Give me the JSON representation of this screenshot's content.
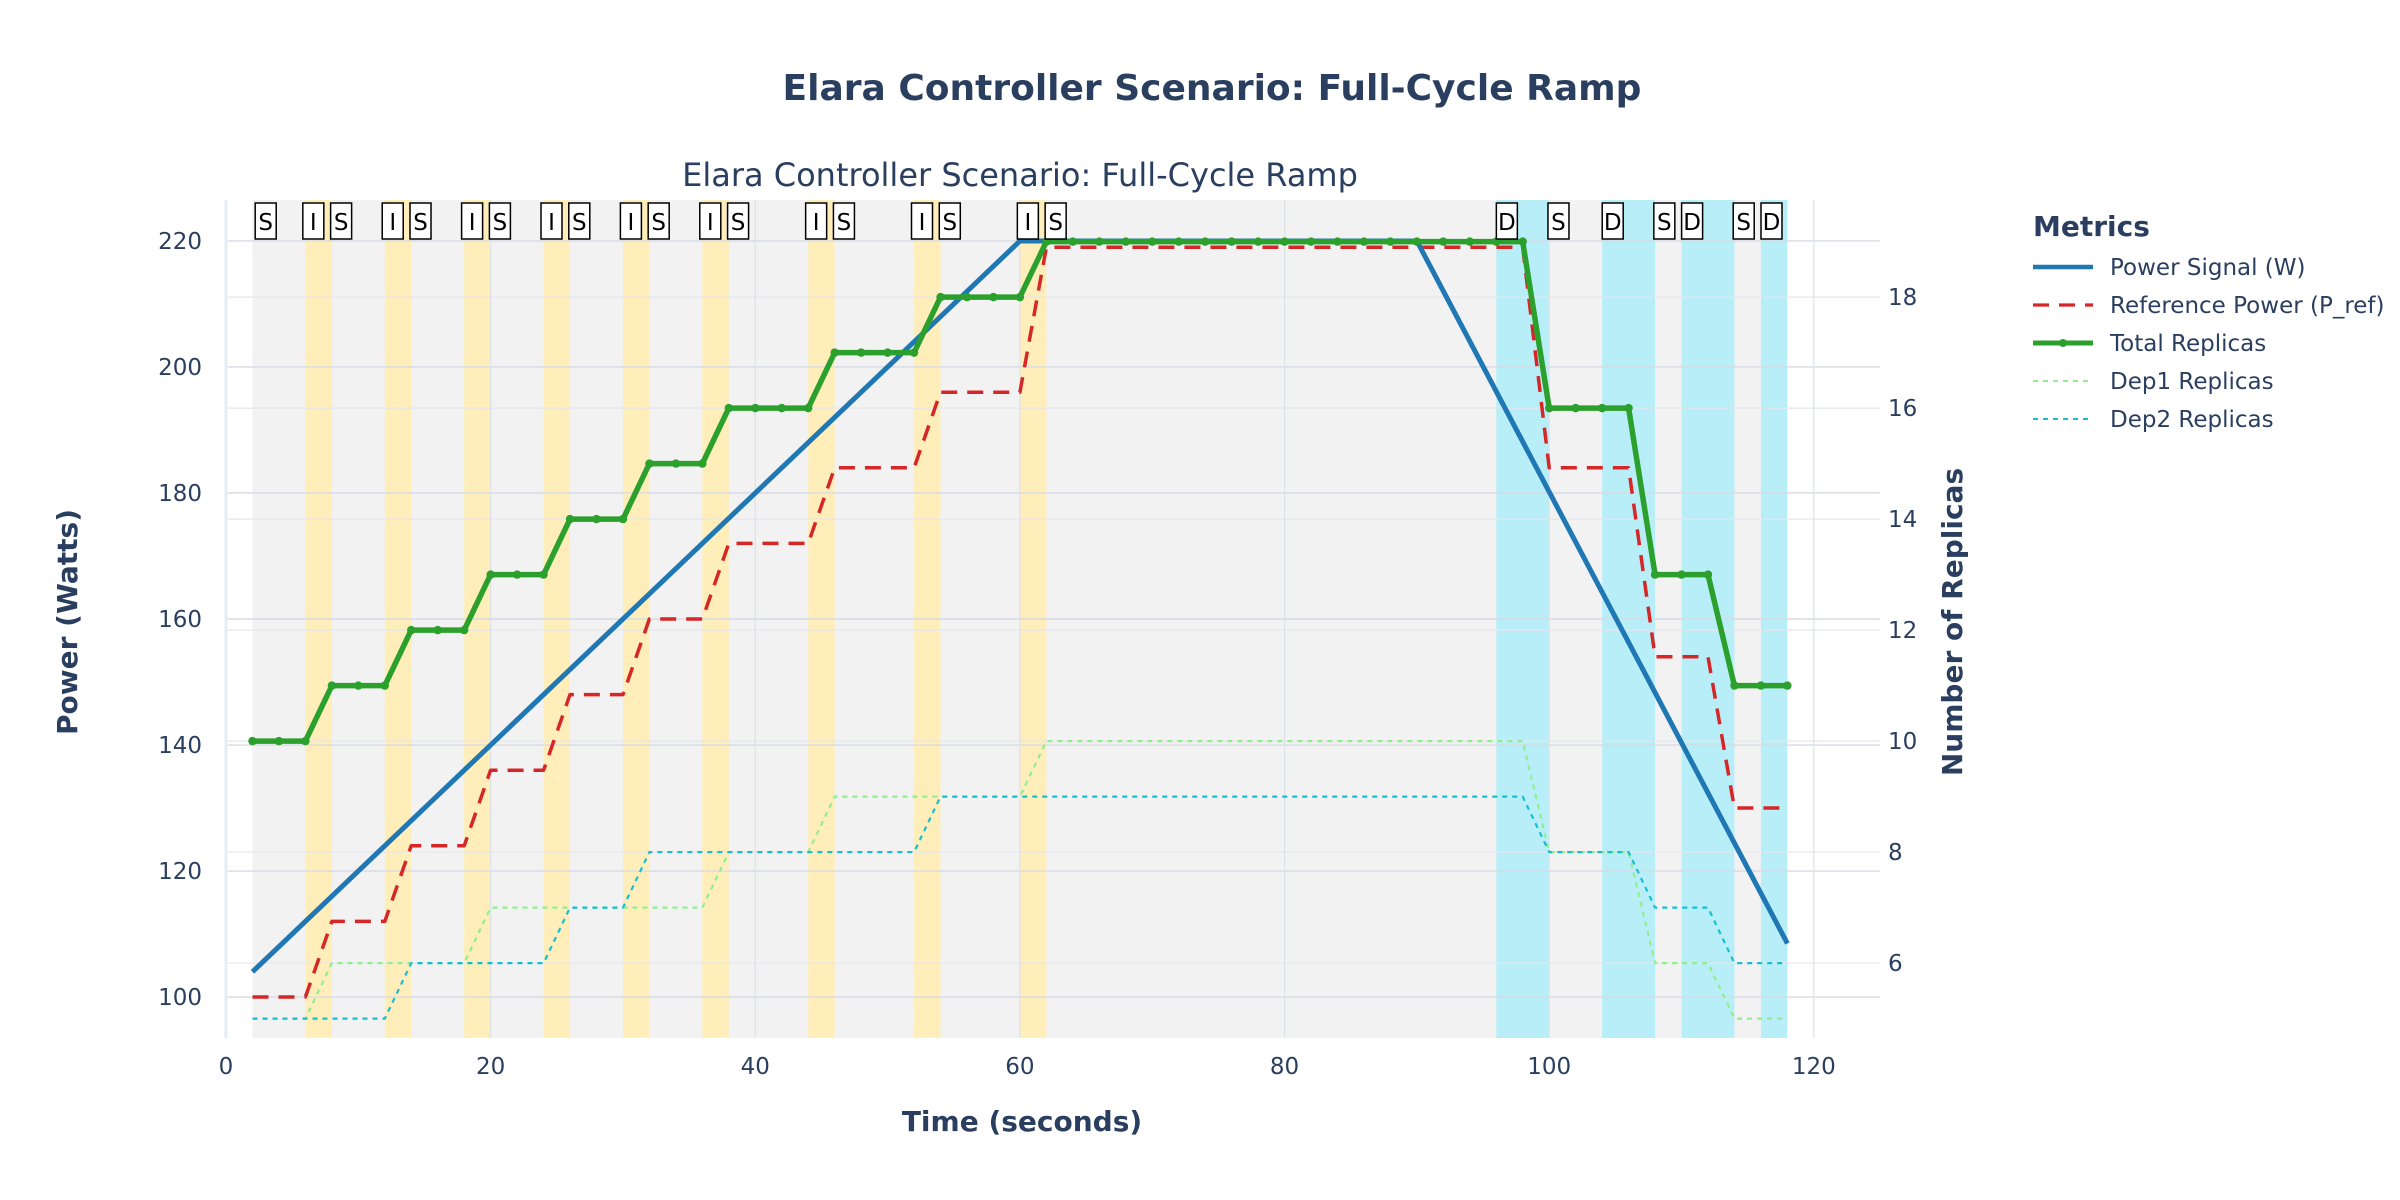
{
  "chart_data": {
    "type": "line",
    "title": "Elara Controller Scenario: Full-Cycle Ramp",
    "subtitle": "Elara Controller Scenario: Full-Cycle Ramp",
    "xlabel": "Time (seconds)",
    "ylabel": "Power (Watts)",
    "y2label": "Number of Replicas",
    "xlim": [
      0,
      125
    ],
    "ylim": [
      93.5,
      226.5
    ],
    "y2lim": [
      4.65,
      19.75
    ],
    "x_ticks": [
      0,
      20,
      40,
      60,
      80,
      100,
      120
    ],
    "y_ticks": [
      100,
      120,
      140,
      160,
      180,
      200,
      220
    ],
    "y2_ticks": [
      6,
      8,
      10,
      12,
      14,
      16,
      18
    ],
    "grid": true,
    "legend_title": "Metrics",
    "legend_position": "top-right",
    "background_shading": {
      "range": [
        2,
        118
      ],
      "color": "#f2f2f2"
    },
    "bands": [
      {
        "start": 6,
        "end": 8,
        "kind": "I",
        "color": "#ffeeba"
      },
      {
        "start": 12,
        "end": 14,
        "kind": "I",
        "color": "#ffeeba"
      },
      {
        "start": 18,
        "end": 20,
        "kind": "I",
        "color": "#ffeeba"
      },
      {
        "start": 24,
        "end": 26,
        "kind": "I",
        "color": "#ffeeba"
      },
      {
        "start": 30,
        "end": 32,
        "kind": "I",
        "color": "#ffeeba"
      },
      {
        "start": 36,
        "end": 38,
        "kind": "I",
        "color": "#ffeeba"
      },
      {
        "start": 44,
        "end": 46,
        "kind": "I",
        "color": "#ffeeba"
      },
      {
        "start": 52,
        "end": 54,
        "kind": "I",
        "color": "#ffeeba"
      },
      {
        "start": 60,
        "end": 62,
        "kind": "I",
        "color": "#ffeeba"
      },
      {
        "start": 96,
        "end": 100,
        "kind": "D",
        "color": "#b8eef8"
      },
      {
        "start": 104,
        "end": 108,
        "kind": "D",
        "color": "#b8eef8"
      },
      {
        "start": 110,
        "end": 114,
        "kind": "D",
        "color": "#b8eef8"
      },
      {
        "start": 116,
        "end": 118,
        "kind": "D",
        "color": "#b8eef8"
      }
    ],
    "markers": [
      {
        "x": 3,
        "label": "S"
      },
      {
        "x": 6.6,
        "label": "I"
      },
      {
        "x": 8.7,
        "label": "S"
      },
      {
        "x": 12.6,
        "label": "I"
      },
      {
        "x": 14.7,
        "label": "S"
      },
      {
        "x": 18.6,
        "label": "I"
      },
      {
        "x": 20.7,
        "label": "S"
      },
      {
        "x": 24.6,
        "label": "I"
      },
      {
        "x": 26.7,
        "label": "S"
      },
      {
        "x": 30.6,
        "label": "I"
      },
      {
        "x": 32.7,
        "label": "S"
      },
      {
        "x": 36.6,
        "label": "I"
      },
      {
        "x": 38.7,
        "label": "S"
      },
      {
        "x": 44.6,
        "label": "I"
      },
      {
        "x": 46.7,
        "label": "S"
      },
      {
        "x": 52.6,
        "label": "I"
      },
      {
        "x": 54.7,
        "label": "S"
      },
      {
        "x": 60.6,
        "label": "I"
      },
      {
        "x": 62.7,
        "label": "S"
      },
      {
        "x": 96.8,
        "label": "D"
      },
      {
        "x": 100.7,
        "label": "S"
      },
      {
        "x": 104.8,
        "label": "D"
      },
      {
        "x": 108.7,
        "label": "S"
      },
      {
        "x": 110.8,
        "label": "D"
      },
      {
        "x": 114.7,
        "label": "S"
      },
      {
        "x": 116.8,
        "label": "D"
      }
    ],
    "series": [
      {
        "name": "Power Signal (W)",
        "axis": "y",
        "color": "#1f77b4",
        "style": "solid",
        "markers": false,
        "x": [
          2,
          60,
          90,
          118
        ],
        "y": [
          104,
          220,
          220,
          108.5
        ]
      },
      {
        "name": "Reference Power (P_ref)",
        "axis": "y",
        "color": "#d62728",
        "style": "dash",
        "markers": false,
        "x": [
          2,
          6,
          8,
          12,
          14,
          18,
          20,
          24,
          26,
          30,
          32,
          36,
          38,
          44,
          46,
          52,
          54,
          60,
          62,
          90,
          98,
          100,
          106,
          108,
          112,
          114,
          118
        ],
        "y": [
          100,
          100,
          112,
          112,
          124,
          124,
          136,
          136,
          148,
          148,
          160,
          160,
          172,
          172,
          184,
          184,
          196,
          196,
          219,
          219,
          219,
          184,
          184,
          154,
          154,
          130,
          130
        ]
      },
      {
        "name": "Total Replicas",
        "axis": "y2",
        "color": "#2ca02c",
        "style": "solid",
        "markers": true,
        "x": [
          2,
          4,
          6,
          8,
          10,
          12,
          14,
          16,
          18,
          20,
          22,
          24,
          26,
          28,
          30,
          32,
          34,
          36,
          38,
          40,
          42,
          44,
          46,
          48,
          50,
          52,
          54,
          56,
          58,
          60,
          62,
          64,
          66,
          68,
          70,
          72,
          74,
          76,
          78,
          80,
          82,
          84,
          86,
          88,
          90,
          92,
          94,
          96,
          98,
          100,
          102,
          104,
          106,
          108,
          110,
          112,
          114,
          116,
          118
        ],
        "y": [
          10,
          10,
          10,
          11,
          11,
          11,
          12,
          12,
          12,
          13,
          13,
          13,
          14,
          14,
          14,
          15,
          15,
          15,
          16,
          16,
          16,
          16,
          17,
          17,
          17,
          17,
          18,
          18,
          18,
          18,
          19,
          19,
          19,
          19,
          19,
          19,
          19,
          19,
          19,
          19,
          19,
          19,
          19,
          19,
          19,
          19,
          19,
          19,
          19,
          16,
          16,
          16,
          16,
          13,
          13,
          13,
          11,
          11,
          11
        ]
      },
      {
        "name": "Dep1 Replicas",
        "axis": "y2",
        "color": "#90ee90",
        "style": "dot",
        "markers": false,
        "x": [
          2,
          6,
          8,
          18,
          20,
          36,
          38,
          44,
          46,
          60,
          62,
          98,
          100,
          106,
          108,
          112,
          114,
          118
        ],
        "y": [
          5,
          5,
          6,
          6,
          7,
          7,
          8,
          8,
          9,
          9,
          10,
          10,
          8,
          8,
          6,
          6,
          5,
          5
        ]
      },
      {
        "name": "Dep2 Replicas",
        "axis": "y2",
        "color": "#17becf",
        "style": "dot",
        "markers": false,
        "x": [
          2,
          12,
          14,
          24,
          26,
          30,
          32,
          52,
          54,
          98,
          100,
          106,
          108,
          112,
          114,
          118
        ],
        "y": [
          5,
          5,
          6,
          6,
          7,
          7,
          8,
          8,
          9,
          9,
          8,
          8,
          7,
          7,
          6,
          6
        ]
      }
    ]
  }
}
